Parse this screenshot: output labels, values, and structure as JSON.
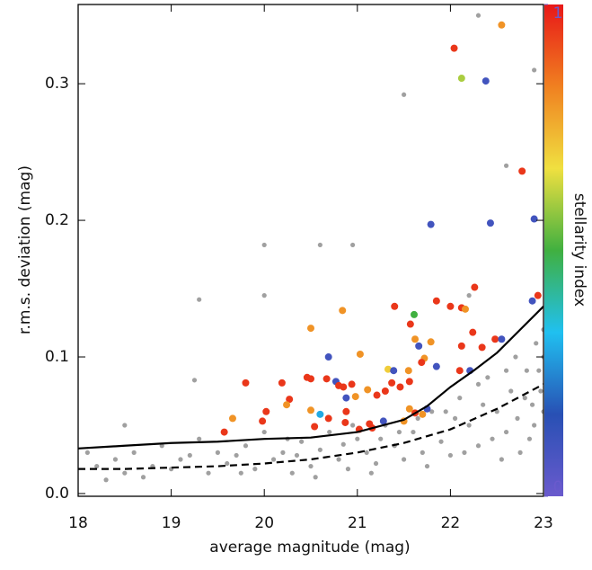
{
  "chart_data": {
    "type": "scatter",
    "xlabel": "average magnitude (mag)",
    "ylabel": "r.m.s. deviation (mag)",
    "xlim": [
      18,
      23
    ],
    "ylim": [
      -0.002,
      0.358
    ],
    "xticks": [
      18,
      19,
      20,
      21,
      22,
      23
    ],
    "yticks": [
      {
        "value": 0,
        "label": "0.0"
      },
      0.1,
      0.2,
      0.3
    ],
    "series": [
      {
        "color": "#a0a0a0",
        "x": [
          18.1,
          18.2,
          18.4,
          18.5,
          18.6,
          18.8,
          18.9,
          19.0,
          19.2,
          19.3,
          19.4,
          19.5,
          19.6,
          19.8,
          19.9,
          20.0,
          20.1,
          20.2,
          20.3,
          20.4,
          20.5,
          20.6,
          20.7,
          20.8,
          20.9,
          21.0,
          21.1,
          21.2,
          21.3,
          21.4,
          21.5,
          21.6,
          21.7,
          21.8,
          21.9,
          22.0,
          22.1,
          22.2,
          22.3,
          22.4,
          22.5,
          22.6,
          22.7,
          22.8,
          22.9,
          23.0,
          22.95,
          22.85,
          22.75,
          22.55,
          19.3,
          20.0,
          20.0,
          20.6,
          20.95,
          21.5,
          22.3,
          22.9,
          22.6,
          22.2,
          19.25,
          18.5,
          18.3,
          18.7,
          19.1,
          19.7,
          20.25,
          20.55,
          20.85,
          21.15,
          21.45,
          21.75,
          22.05,
          22.15,
          22.35,
          22.45,
          22.65,
          22.72,
          22.82,
          22.88,
          22.92,
          22.97,
          23.0,
          23.0,
          22.6,
          22.3,
          21.95,
          21.65,
          21.25,
          20.95,
          20.35,
          19.75
        ],
        "y": [
          0.03,
          0.02,
          0.025,
          0.015,
          0.03,
          0.02,
          0.035,
          0.018,
          0.028,
          0.04,
          0.015,
          0.03,
          0.022,
          0.035,
          0.018,
          0.045,
          0.025,
          0.03,
          0.015,
          0.038,
          0.02,
          0.032,
          0.045,
          0.025,
          0.018,
          0.04,
          0.03,
          0.022,
          0.05,
          0.035,
          0.025,
          0.045,
          0.03,
          0.06,
          0.038,
          0.028,
          0.07,
          0.05,
          0.035,
          0.085,
          0.06,
          0.045,
          0.1,
          0.07,
          0.05,
          0.12,
          0.09,
          0.04,
          0.03,
          0.025,
          0.142,
          0.182,
          0.145,
          0.182,
          0.182,
          0.292,
          0.35,
          0.31,
          0.24,
          0.145,
          0.083,
          0.05,
          0.01,
          0.012,
          0.025,
          0.028,
          0.04,
          0.012,
          0.036,
          0.015,
          0.045,
          0.02,
          0.055,
          0.03,
          0.065,
          0.04,
          0.075,
          0.055,
          0.09,
          0.065,
          0.11,
          0.075,
          0.06,
          0.1,
          0.09,
          0.08,
          0.06,
          0.055,
          0.04,
          0.05,
          0.028,
          0.015
        ]
      },
      {
        "x": [
          22.04,
          22.55,
          22.12,
          22.38,
          22.77,
          22.9,
          21.79,
          22.43,
          22.94,
          22.88,
          21.85,
          22.26,
          22.0,
          22.12,
          22.16,
          21.4,
          21.61,
          21.57,
          20.84,
          21.62,
          21.79,
          21.66,
          20.5,
          20.69,
          21.03,
          21.72,
          21.85,
          22.21,
          22.24,
          22.34,
          22.48,
          22.55,
          22.12,
          22.1,
          21.55,
          21.33,
          21.39,
          21.69,
          21.56,
          21.37,
          21.46,
          21.3,
          21.21,
          21.11,
          20.94,
          20.85,
          20.98,
          20.88,
          20.67,
          20.77,
          20.8,
          20.46,
          20.27,
          20.24,
          20.19,
          19.8,
          19.98,
          20.02,
          19.66,
          19.57,
          20.5,
          20.5,
          20.6,
          20.69,
          20.88,
          20.87,
          21.13,
          21.16,
          21.28,
          21.5,
          21.62,
          21.7,
          21.75,
          20.54,
          21.02,
          21.56
        ],
        "y": [
          0.326,
          0.343,
          0.304,
          0.302,
          0.236,
          0.201,
          0.197,
          0.198,
          0.145,
          0.141,
          0.141,
          0.151,
          0.137,
          0.136,
          0.135,
          0.137,
          0.131,
          0.124,
          0.134,
          0.113,
          0.111,
          0.108,
          0.121,
          0.1,
          0.102,
          0.099,
          0.093,
          0.09,
          0.118,
          0.107,
          0.113,
          0.113,
          0.108,
          0.09,
          0.09,
          0.091,
          0.09,
          0.096,
          0.082,
          0.081,
          0.078,
          0.075,
          0.072,
          0.076,
          0.08,
          0.078,
          0.071,
          0.07,
          0.084,
          0.082,
          0.079,
          0.085,
          0.069,
          0.065,
          0.081,
          0.081,
          0.053,
          0.06,
          0.055,
          0.045,
          0.084,
          0.061,
          0.058,
          0.055,
          0.06,
          0.052,
          0.051,
          0.048,
          0.053,
          0.053,
          0.059,
          0.058,
          0.062,
          0.049,
          0.047,
          0.062
        ],
        "c": [
          0.95,
          0.8,
          0.6,
          0.1,
          0.95,
          0.1,
          0.1,
          0.1,
          0.95,
          0.1,
          0.95,
          0.95,
          0.95,
          0.95,
          0.8,
          0.95,
          0.5,
          0.95,
          0.8,
          0.8,
          0.8,
          0.1,
          0.8,
          0.1,
          0.8,
          0.8,
          0.1,
          0.1,
          0.95,
          0.95,
          0.95,
          0.1,
          0.95,
          0.95,
          0.8,
          0.7,
          0.1,
          0.95,
          0.95,
          0.95,
          0.95,
          0.95,
          0.95,
          0.8,
          0.95,
          0.95,
          0.8,
          0.1,
          0.95,
          0.1,
          0.95,
          0.95,
          0.95,
          0.8,
          0.95,
          0.95,
          0.95,
          0.95,
          0.8,
          0.95,
          0.95,
          0.8,
          0.3,
          0.95,
          0.95,
          0.95,
          0.95,
          0.95,
          0.1,
          0.8,
          0.95,
          0.8,
          0.1,
          0.95,
          0.95,
          0.8
        ]
      }
    ],
    "lines": [
      {
        "style": "solid",
        "color": "#000000",
        "x": [
          18,
          18.5,
          19,
          19.5,
          20,
          20.5,
          21,
          21.5,
          21.75,
          22,
          22.25,
          22.5,
          22.75,
          23
        ],
        "y": [
          0.033,
          0.035,
          0.037,
          0.038,
          0.04,
          0.041,
          0.045,
          0.054,
          0.064,
          0.078,
          0.09,
          0.103,
          0.12,
          0.137
        ]
      },
      {
        "style": "dashed",
        "color": "#000000",
        "x": [
          18,
          18.5,
          19,
          19.5,
          20,
          20.5,
          21,
          21.5,
          22,
          22.5,
          23
        ],
        "y": [
          0.018,
          0.018,
          0.019,
          0.02,
          0.022,
          0.025,
          0.03,
          0.037,
          0.047,
          0.062,
          0.08
        ]
      }
    ],
    "colorbar": {
      "label": "stellarity index",
      "lim": [
        0,
        1
      ],
      "ticks": [
        0,
        1
      ],
      "colors": [
        "#6a5acd",
        "#2850b4",
        "#20c0f0",
        "#40b040",
        "#f0e040",
        "#f08020",
        "#e81818"
      ]
    }
  }
}
